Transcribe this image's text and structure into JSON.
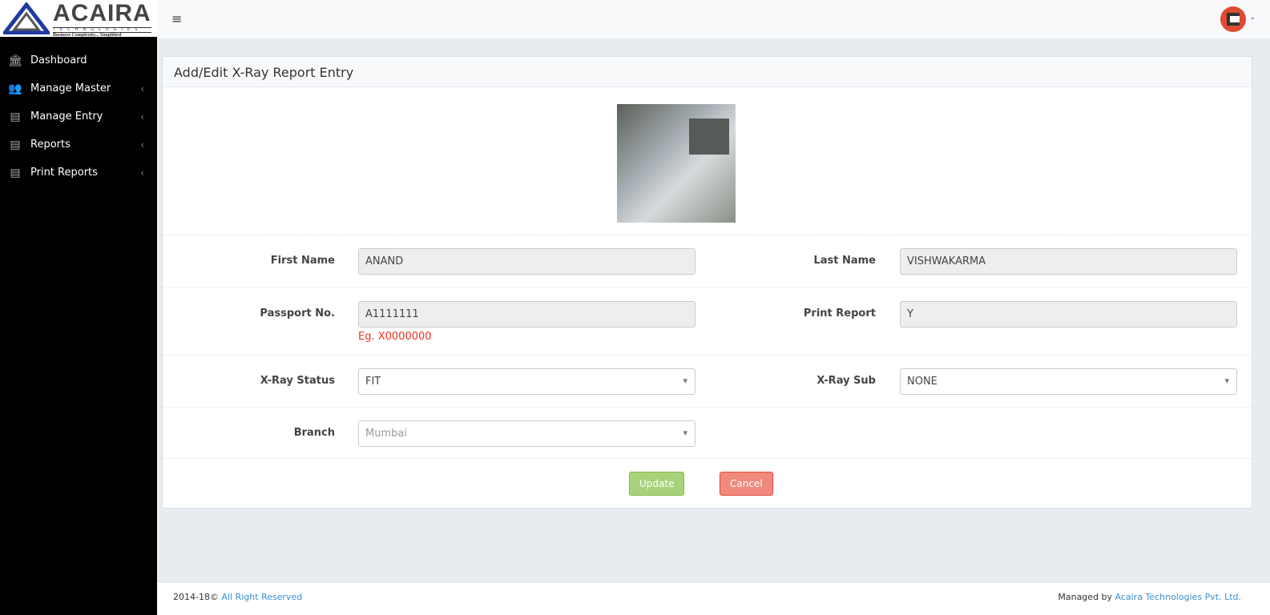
{
  "brand": {
    "name": "ACAIRA",
    "sub": "TECHNOLOGIES",
    "tagline": "Business Complexity... Simplified"
  },
  "sidebar": {
    "items": [
      {
        "label": "Dashboard",
        "icon": "bank-icon",
        "chevron": false
      },
      {
        "label": "Manage Master",
        "icon": "users-icon",
        "chevron": true
      },
      {
        "label": "Manage Entry",
        "icon": "clipboard-icon",
        "chevron": true
      },
      {
        "label": "Reports",
        "icon": "clipboard-icon",
        "chevron": true
      },
      {
        "label": "Print Reports",
        "icon": "clipboard-icon",
        "chevron": true
      }
    ]
  },
  "panel": {
    "title": "Add/Edit X-Ray Report Entry"
  },
  "form": {
    "first_name": {
      "label": "First Name",
      "value": "ANAND"
    },
    "last_name": {
      "label": "Last Name",
      "value": "VISHWAKARMA"
    },
    "passport": {
      "label": "Passport No.",
      "value": "A1111111",
      "hint": "Eg. X0000000"
    },
    "print_report": {
      "label": "Print Report",
      "value": "Y"
    },
    "xray_status": {
      "label": "X-Ray Status",
      "value": "FIT"
    },
    "xray_sub": {
      "label": "X-Ray Sub",
      "value": "NONE"
    },
    "branch": {
      "label": "Branch",
      "value": "Mumbai"
    }
  },
  "buttons": {
    "update": "Update",
    "cancel": "Cancel"
  },
  "footer": {
    "copyright": "2014-18©",
    "rights": "All Right Reserved",
    "managed": "Managed by",
    "company": "Acaira Technologies Pvt. Ltd."
  },
  "colors": {
    "sidebar": "#000000",
    "update": "#a7d27a",
    "cancel": "#f08a7e",
    "hint": "#f0301f",
    "link": "#3b8fd4"
  }
}
